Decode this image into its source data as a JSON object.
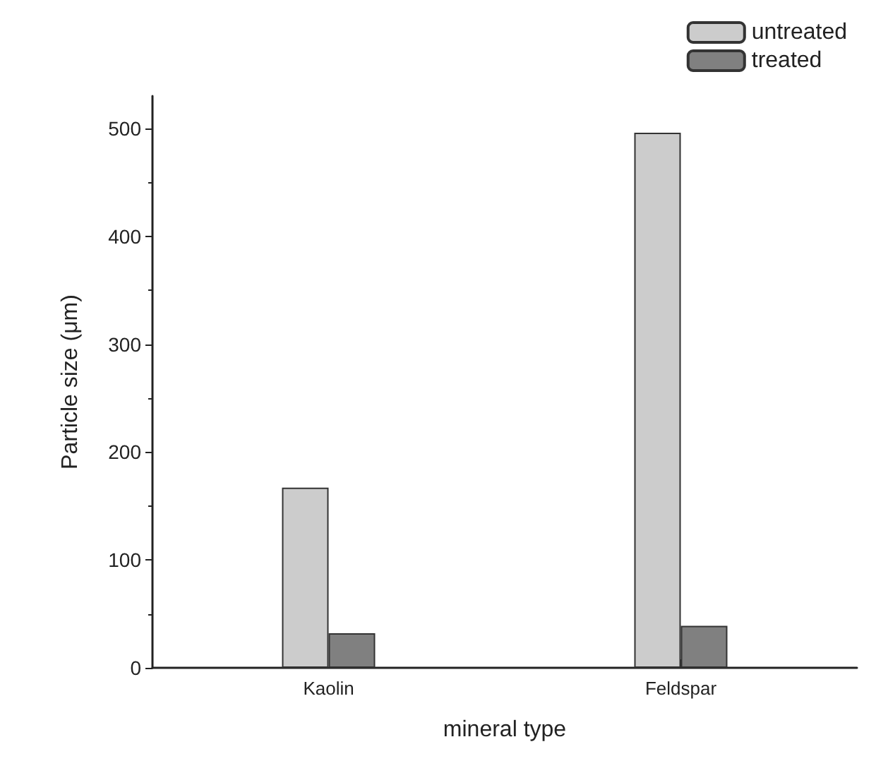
{
  "chart_data": {
    "type": "bar",
    "xlabel": "mineral type",
    "ylabel": "Particle size (μm)",
    "categories": [
      "Kaolin",
      "Feldspar"
    ],
    "series": [
      {
        "name": "untreated",
        "color": "#cccccc",
        "values": [
          167,
          496
        ]
      },
      {
        "name": "treated",
        "color": "#808080",
        "values": [
          32,
          39
        ]
      }
    ],
    "ylim": [
      0,
      530
    ],
    "yticks": [
      0,
      100,
      200,
      300,
      400,
      500
    ],
    "grid": false,
    "legend": "top right"
  }
}
